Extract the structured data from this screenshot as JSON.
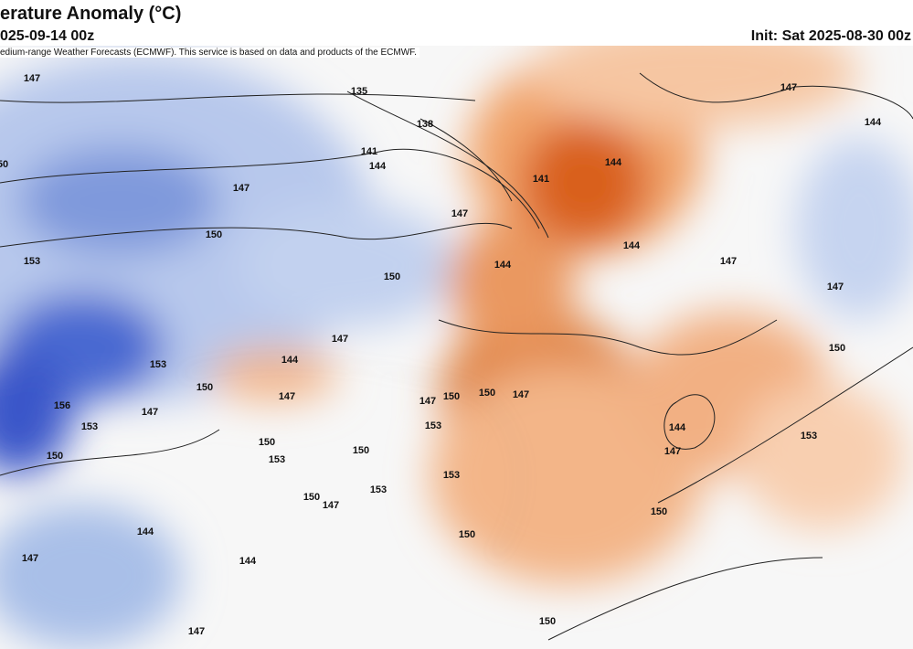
{
  "header": {
    "title": "erature Anomaly (°C)",
    "valid": "025-09-14 00z",
    "init": "Init: Sat 2025-08-30 00z"
  },
  "attribution": "edium-range Weather Forecasts (ECMWF). This service is based on data and products of the ECMWF.",
  "contour_labels": [
    147,
    135,
    138,
    141,
    144,
    147,
    144,
    50,
    147,
    141,
    144,
    147,
    150,
    153,
    144,
    144,
    147,
    147,
    150,
    147,
    144,
    150,
    153,
    150,
    147,
    147,
    150,
    150,
    147,
    156,
    147,
    153,
    144,
    147,
    153,
    153,
    150,
    153,
    150,
    153,
    150,
    153,
    150,
    147,
    150,
    144,
    150,
    147,
    144,
    150,
    147
  ]
}
